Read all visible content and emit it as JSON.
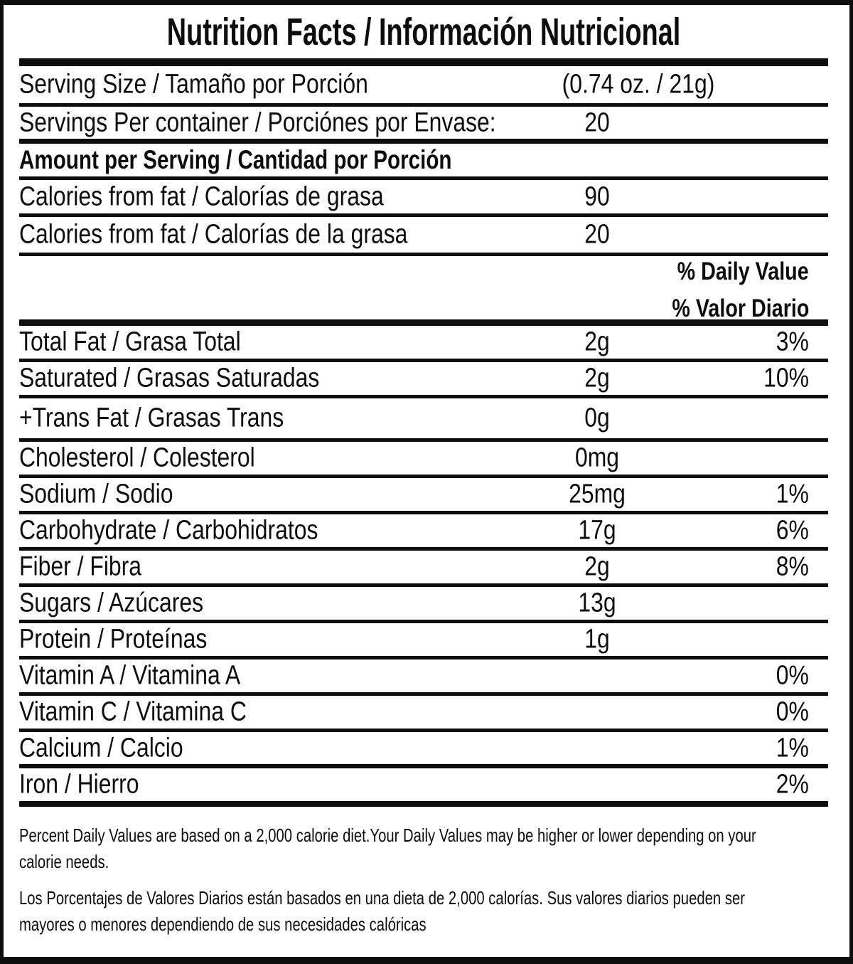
{
  "title": "Nutrition Facts / Información Nutricional",
  "serving_size": {
    "label": "Serving Size / Tamaño por Porción",
    "value": "(0.74 oz. / 21g)"
  },
  "servings_per_container": {
    "label": "Servings Per container / Porciónes por Envase:",
    "value": "20"
  },
  "section_heading": "Amount per Serving / Cantidad por Porción",
  "calories": [
    {
      "label": "Calories from fat / Calorías de grasa",
      "value": "90"
    },
    {
      "label": "Calories from fat / Calorías de la grasa",
      "value": "20"
    }
  ],
  "daily_value_header": {
    "en": "% Daily Value",
    "es": "% Valor Diario"
  },
  "nutrients": [
    {
      "label": "Total Fat / Grasa Total",
      "amount": "2g",
      "dv": "3%"
    },
    {
      "label": "Saturated / Grasas Saturadas",
      "amount": "2g",
      "dv": "10%"
    },
    {
      "label": "+Trans Fat / Grasas Trans",
      "amount": "0g",
      "dv": ""
    },
    {
      "label": "Cholesterol / Colesterol",
      "amount": "0mg",
      "dv": ""
    },
    {
      "label": "Sodium / Sodio",
      "amount": "25mg",
      "dv": "1%"
    },
    {
      "label": "Carbohydrate / Carbohidratos",
      "amount": "17g",
      "dv": "6%"
    },
    {
      "label": "Fiber / Fibra",
      "amount": "2g",
      "dv": "8%"
    },
    {
      "label": "Sugars / Azúcares",
      "amount": "13g",
      "dv": ""
    },
    {
      "label": "Protein / Proteínas",
      "amount": "1g",
      "dv": ""
    },
    {
      "label": "Vitamin A / Vitamina A",
      "amount": "",
      "dv": "0%"
    },
    {
      "label": "Vitamin C / Vitamina C",
      "amount": "",
      "dv": "0%"
    },
    {
      "label": "Calcium / Calcio",
      "amount": "",
      "dv": "1%"
    },
    {
      "label": "Iron / Hierro",
      "amount": "",
      "dv": "2%"
    }
  ],
  "footnotes": {
    "en_lines": [
      "Percent Daily Values are based on a 2,000 calorie diet.Your Daily Values may be higher or lower depending on your",
      "calorie needs."
    ],
    "es_lines": [
      "Los Porcentajes de Valores Diarios están basados en una dieta de 2,000 calorías. Sus valores diarios pueden ser",
      "mayores o menores dependiendo de sus necesidades calóricas"
    ]
  },
  "colors": {
    "ink": "#0d0d0d",
    "background": "#ffffff"
  }
}
